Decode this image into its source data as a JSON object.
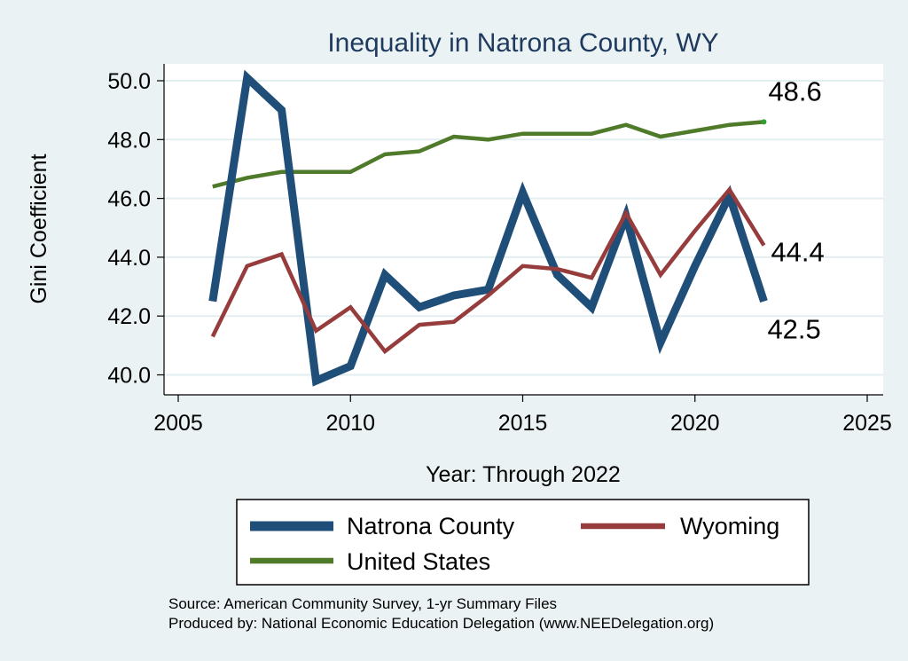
{
  "chart_data": {
    "type": "line",
    "title": "Inequality in Natrona County, WY",
    "xlabel": "Year: Through 2022",
    "ylabel": "Gini Coefficient",
    "xlim": [
      2005,
      2025
    ],
    "ylim": [
      39.6,
      50.5
    ],
    "x_ticks": [
      "2005",
      "2010",
      "2015",
      "2020",
      "2025"
    ],
    "y_ticks": [
      "40.0",
      "42.0",
      "44.0",
      "46.0",
      "48.0",
      "50.0"
    ],
    "x": [
      2006,
      2007,
      2008,
      2009,
      2010,
      2011,
      2012,
      2013,
      2014,
      2015,
      2016,
      2017,
      2018,
      2019,
      2020,
      2021,
      2022
    ],
    "series": [
      {
        "name": "Natrona County",
        "color": "#1f4e79",
        "values": [
          42.5,
          50.1,
          49.0,
          39.8,
          40.3,
          43.4,
          42.3,
          42.7,
          42.9,
          46.2,
          43.4,
          42.3,
          45.4,
          41.1,
          43.7,
          46.1,
          42.5
        ],
        "end_label": "42.5"
      },
      {
        "name": "Wyoming",
        "color": "#963c3c",
        "values": [
          41.3,
          43.7,
          44.1,
          41.5,
          42.3,
          40.8,
          41.7,
          41.8,
          42.7,
          43.7,
          43.6,
          43.3,
          45.5,
          43.4,
          44.9,
          46.3,
          44.4
        ],
        "end_label": "44.4"
      },
      {
        "name": "United States",
        "color": "#4e7a2a",
        "values": [
          46.4,
          46.7,
          46.9,
          46.9,
          46.9,
          47.5,
          47.6,
          48.1,
          48.0,
          48.2,
          48.2,
          48.2,
          48.5,
          48.1,
          48.3,
          48.5,
          48.6
        ],
        "end_label": "48.6"
      }
    ],
    "legend": [
      "Natrona County",
      "Wyoming",
      "United States"
    ],
    "legend_position": "bottom",
    "grid": true
  },
  "notes": {
    "source": "Source: American Community Survey, 1-yr Summary Files",
    "produced_by": "Produced by: National Economic Education Delegation (www.NEEDelegation.org)"
  }
}
